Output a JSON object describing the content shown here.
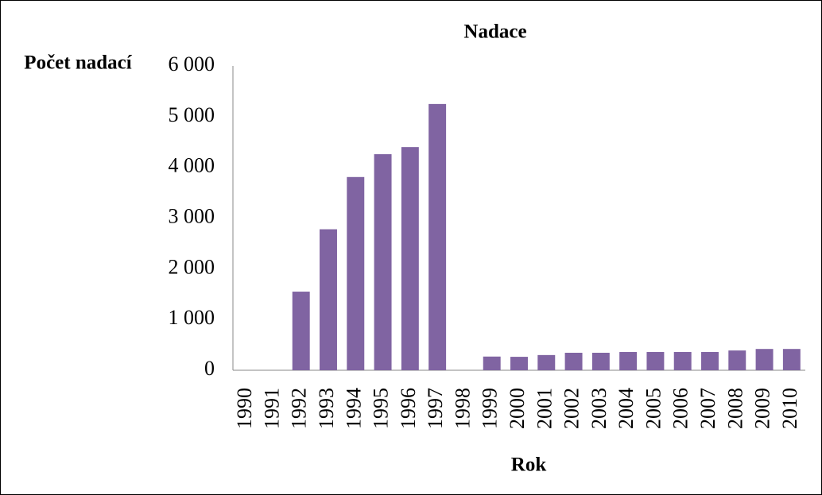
{
  "chart_data": {
    "type": "bar",
    "title": "Nadace",
    "ylabel": "Počet nadací",
    "xlabel": "Rok",
    "categories": [
      "1990",
      "1991",
      "1992",
      "1993",
      "1994",
      "1995",
      "1996",
      "1997",
      "1998",
      "1999",
      "2000",
      "2001",
      "2002",
      "2003",
      "2004",
      "2005",
      "2006",
      "2007",
      "2008",
      "2009",
      "2010"
    ],
    "values": [
      0,
      0,
      1550,
      2780,
      3810,
      4260,
      4400,
      5250,
      0,
      270,
      265,
      300,
      345,
      345,
      360,
      360,
      360,
      360,
      390,
      420,
      420
    ],
    "color": "#8064a2",
    "ylim": [
      0,
      6000
    ],
    "yticks": [
      0,
      {
        "value": 1000,
        "label": "1 000"
      },
      {
        "value": 2000,
        "label": "2 000"
      },
      {
        "value": 3000,
        "label": "3 000"
      },
      {
        "value": 4000,
        "label": "4 000"
      },
      {
        "value": 5000,
        "label": "5 000"
      },
      {
        "value": 6000,
        "label": "6 000"
      }
    ],
    "grid": false
  }
}
